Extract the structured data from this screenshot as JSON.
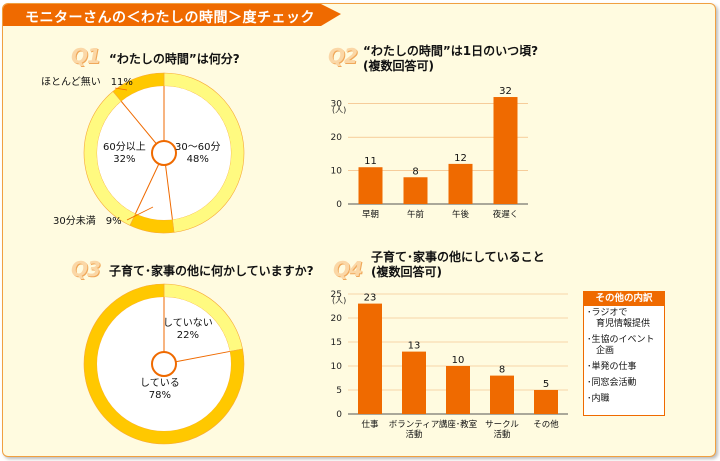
{
  "title": "モニターさんの＜わたしの時間＞度チェック",
  "colors": {
    "orange": "#ef6a00",
    "light_orange": "#f7a93b",
    "yellow": "#ffc800",
    "pale_yellow": "#fffa80",
    "bg": "#fffbe0"
  },
  "q1": {
    "num": "Q1",
    "text": "“わたしの時間”は何分?",
    "chart_data": {
      "type": "pie",
      "title": "“わたしの時間”は何分?",
      "slices": [
        {
          "label": "30〜60分",
          "value": 48
        },
        {
          "label": "30分未満",
          "value": 9
        },
        {
          "label": "60分以上",
          "value": 32
        },
        {
          "label": "ほとんど無い",
          "value": 11
        }
      ],
      "unit": "%"
    },
    "labels": {
      "s30_60": "30〜60分\n48%",
      "s60": "60分以上\n32%",
      "s30": "30分未満　9%",
      "none": "ほとんど無い　11%"
    }
  },
  "q2": {
    "num": "Q2",
    "text": "“わたしの時間”は1日のいつ頃?\n(複数回答可)",
    "chart_data": {
      "type": "bar",
      "categories": [
        "早朝",
        "午前",
        "午後",
        "夜遅く"
      ],
      "values": [
        11,
        8,
        12,
        32
      ],
      "ylabel": "(人)",
      "ylim": [
        0,
        35
      ],
      "yticks": [
        0,
        10,
        20,
        30
      ],
      "grid": true
    }
  },
  "q3": {
    "num": "Q3",
    "text": "子育て･家事の他に何かしていますか?",
    "chart_data": {
      "type": "pie",
      "title": "子育て･家事の他に何かしていますか?",
      "slices": [
        {
          "label": "していない",
          "value": 22
        },
        {
          "label": "している",
          "value": 78
        }
      ],
      "unit": "%"
    },
    "labels": {
      "no": "していない\n22%",
      "yes": "している\n78%"
    }
  },
  "q4": {
    "num": "Q4",
    "text": "子育て･家事の他にしていること\n(複数回答可)",
    "chart_data": {
      "type": "bar",
      "categories": [
        "仕事",
        "ボランティア\n活動",
        "講座･教室",
        "サークル\n活動",
        "その他"
      ],
      "values": [
        23,
        13,
        10,
        8,
        5
      ],
      "ylabel": "(人)",
      "ylim": [
        0,
        25
      ],
      "yticks": [
        0,
        5,
        10,
        15,
        20,
        25
      ],
      "grid": true
    },
    "other": {
      "heading": "その他の内訳",
      "items": [
        "･ラジオで\n　育児情報提供",
        "･生協のイベント\n　企画",
        "･単発の仕事",
        "･同窓会活動",
        "･内職"
      ]
    }
  }
}
